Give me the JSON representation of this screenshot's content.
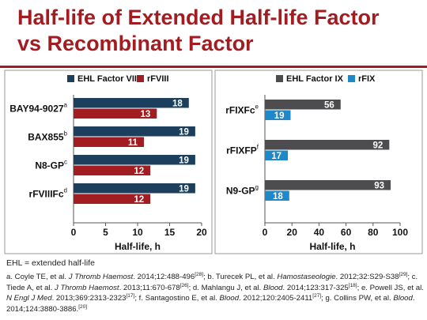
{
  "title_line1": "Half-life of Extended Half-life Factor",
  "title_line2": "vs Recombinant Factor",
  "colors": {
    "title": "#a11d21",
    "ehl_fviii": "#1b3f5c",
    "r_fviii": "#a11d21",
    "ehl_fix": "#4d4d4f",
    "r_fix": "#1e88c8"
  },
  "chart_data": [
    {
      "type": "bar",
      "orientation": "horizontal",
      "categories": [
        "BAY94-9027",
        "BAX855",
        "N8-GP",
        "rFVIIIFc"
      ],
      "category_superscripts": [
        "a",
        "b",
        "c",
        "d"
      ],
      "series": [
        {
          "name": "EHL Factor VIII",
          "values": [
            18,
            19,
            19,
            19
          ]
        },
        {
          "name": "rFVIII",
          "values": [
            13,
            11,
            12,
            12
          ]
        }
      ],
      "xlabel": "Half-life, h",
      "xlim": [
        0,
        20
      ],
      "xticks": [
        0,
        5,
        10,
        15,
        20
      ],
      "legend": "top"
    },
    {
      "type": "bar",
      "orientation": "horizontal",
      "categories": [
        "rFIXFc",
        "rFIXFP",
        "N9-GP"
      ],
      "category_superscripts": [
        "e",
        "f",
        "g"
      ],
      "series": [
        {
          "name": "EHL Factor IX",
          "values": [
            56,
            92,
            93
          ]
        },
        {
          "name": "rFIX",
          "values": [
            19,
            17,
            18
          ]
        }
      ],
      "xlabel": "Half-life, h",
      "xlim": [
        0,
        100
      ],
      "xticks": [
        0,
        20,
        40,
        60,
        80,
        100
      ],
      "legend": "top"
    }
  ],
  "footnote_ehl": "EHL = extended half-life",
  "references": [
    {
      "letter": "a.",
      "authors": "Coyle TE, et al.",
      "journal": "J Thromb Haemost",
      "cite": ". 2014;12:488-496",
      "ref": "[28]",
      "sep": "; "
    },
    {
      "letter": "b.",
      "authors": "Turecek PL, et al.",
      "journal": "Hamostaseologie",
      "cite": ". 2012;32:S29-S38",
      "ref": "[29]",
      "sep": "; "
    },
    {
      "letter": "c.",
      "authors": "Tiede A, et al.",
      "journal": "J Thromb Haemost",
      "cite": ". 2013;11:670-678",
      "ref": "[26]",
      "sep": "; "
    },
    {
      "letter": "d.",
      "authors": "Mahlangu J, et al.",
      "journal": "Blood",
      "cite": ". 2014;123:317-325",
      "ref": "[18]",
      "sep": "; "
    },
    {
      "letter": "e.",
      "authors": "Powell JS, et al.",
      "journal": "N Engl J Med",
      "cite": ". 2013;369:2313-2323",
      "ref": "[17]",
      "sep": "; "
    },
    {
      "letter": "f.",
      "authors": "Santagostino E, et al.",
      "journal": "Blood",
      "cite": ". 2012;120:2405-2411",
      "ref": "[27]",
      "sep": "; "
    },
    {
      "letter": "g.",
      "authors": "Collins PW, et al.",
      "journal": "Blood",
      "cite": ". 2014;124:3880-3886.",
      "ref": "[20]",
      "sep": ""
    }
  ]
}
